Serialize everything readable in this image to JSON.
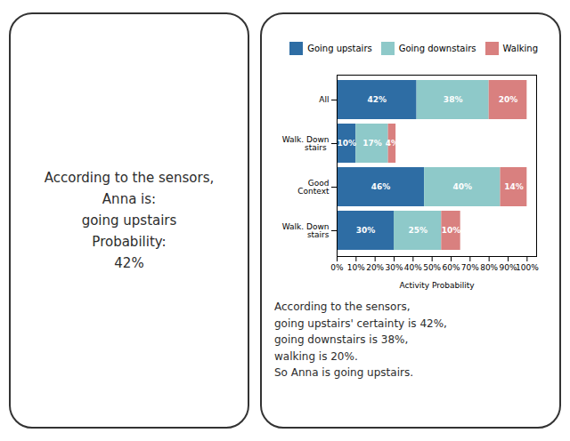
{
  "chart_data": {
    "type": "bar",
    "orientation": "horizontal",
    "stacked": true,
    "categories": [
      "Walk. Down\nstairs",
      "Good\nContext",
      "Walk. Down\nstairs ",
      "All"
    ],
    "series": [
      {
        "name": "Going upstairs",
        "color": "#2e6da4",
        "values": [
          0.3,
          0.46,
          0.1,
          0.42
        ],
        "value_labels": [
          "30%",
          "46%",
          "10%",
          "42%"
        ]
      },
      {
        "name": "Going downstairs",
        "color": "#8ec9c9",
        "values": [
          0.25,
          0.4,
          0.17,
          0.38
        ],
        "value_labels": [
          "25%",
          "40%",
          "17%",
          "38%"
        ]
      },
      {
        "name": "Walking",
        "color": "#d9807f",
        "values": [
          0.1,
          0.14,
          0.04,
          0.2
        ],
        "value_labels": [
          "10%",
          "14%",
          "4%",
          "20%"
        ]
      }
    ],
    "xlabel": "Activity Probability",
    "xlim": [
      0,
      1.05
    ],
    "xticks": [
      {
        "value": 0,
        "label": "0%"
      },
      {
        "value": 0.1,
        "label": "10%"
      },
      {
        "value": 0.2,
        "label": "20%"
      },
      {
        "value": 0.3,
        "label": "30%"
      },
      {
        "value": 0.4,
        "label": "40%"
      },
      {
        "value": 0.5,
        "label": "50%"
      },
      {
        "value": 0.6,
        "label": "60%"
      },
      {
        "value": 0.7,
        "label": "70%"
      },
      {
        "value": 0.8,
        "label": "80%"
      },
      {
        "value": 0.9,
        "label": "90%"
      },
      {
        "value": 1.0,
        "label": "100%"
      }
    ],
    "data_labels": true,
    "legend": "upper right",
    "grid": false,
    "annotations": [
      [
        "According to the sensors,",
        "Anna is:",
        "going upstairs",
        "Probability:",
        "42%"
      ],
      [
        "According to the sensors,",
        "going upstairs' certainty is 42%,",
        "going downstairs is 38%,",
        "walking is 20%.",
        "So Anna is going upstairs."
      ]
    ]
  }
}
